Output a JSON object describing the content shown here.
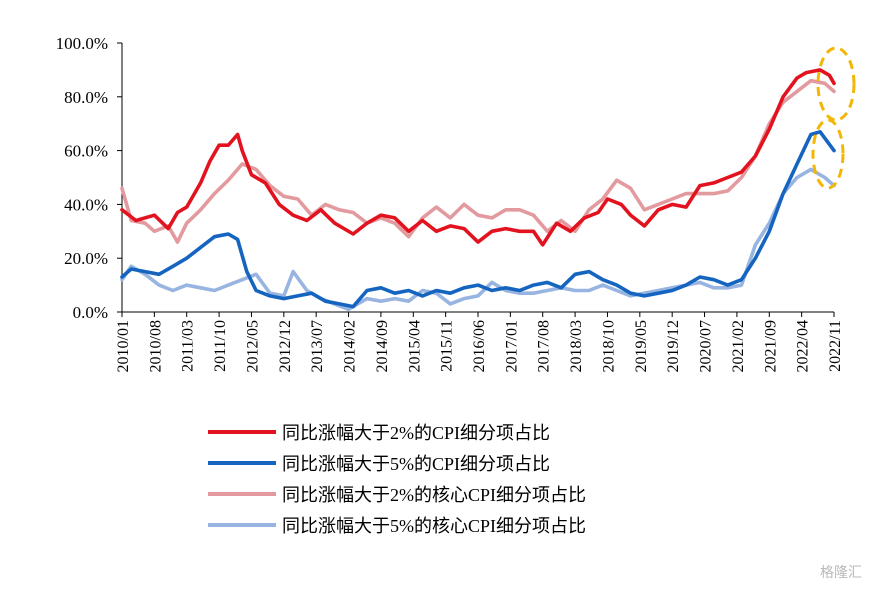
{
  "colors": {
    "series_1": "#e2131e",
    "series_2": "#1565c0",
    "series_3": "#e39a9e",
    "series_4": "#98b4e0",
    "highlight": "#f2b705",
    "axis": "#000000"
  },
  "watermark": "格隆汇",
  "chart_data": {
    "type": "line",
    "title": "",
    "xlabel": "",
    "ylabel": "",
    "ylim": [
      0,
      100
    ],
    "y_ticks": [
      "0.0%",
      "20.0%",
      "40.0%",
      "60.0%",
      "80.0%",
      "100.0%"
    ],
    "x_ticks": [
      "2010/01",
      "2010/08",
      "2011/03",
      "2011/10",
      "2012/05",
      "2012/12",
      "2013/07",
      "2014/02",
      "2014/09",
      "2015/04",
      "2015/11",
      "2016/06",
      "2017/01",
      "2017/08",
      "2018/03",
      "2018/10",
      "2019/05",
      "2019/12",
      "2020/07",
      "2021/02",
      "2021/09",
      "2022/04",
      "2022/11"
    ],
    "grid": false,
    "legend_position": "bottom",
    "x_range": [
      "2010/01",
      "2022/11"
    ],
    "series": [
      {
        "name": "同比涨幅大于2%的CPI细分项占比",
        "points": [
          [
            "2010/01",
            38
          ],
          [
            "2010/04",
            34
          ],
          [
            "2010/08",
            36
          ],
          [
            "2010/11",
            31
          ],
          [
            "2011/01",
            37
          ],
          [
            "2011/03",
            39
          ],
          [
            "2011/06",
            48
          ],
          [
            "2011/08",
            56
          ],
          [
            "2011/10",
            62
          ],
          [
            "2011/12",
            62
          ],
          [
            "2012/02",
            66
          ],
          [
            "2012/03",
            60
          ],
          [
            "2012/05",
            51
          ],
          [
            "2012/08",
            48
          ],
          [
            "2012/11",
            40
          ],
          [
            "2013/02",
            36
          ],
          [
            "2013/05",
            34
          ],
          [
            "2013/08",
            38
          ],
          [
            "2013/11",
            33
          ],
          [
            "2014/03",
            29
          ],
          [
            "2014/06",
            33
          ],
          [
            "2014/09",
            36
          ],
          [
            "2014/12",
            35
          ],
          [
            "2015/03",
            30
          ],
          [
            "2015/06",
            34
          ],
          [
            "2015/09",
            30
          ],
          [
            "2015/12",
            32
          ],
          [
            "2016/03",
            31
          ],
          [
            "2016/06",
            26
          ],
          [
            "2016/09",
            30
          ],
          [
            "2016/12",
            31
          ],
          [
            "2017/03",
            30
          ],
          [
            "2017/06",
            30
          ],
          [
            "2017/08",
            25
          ],
          [
            "2017/11",
            33
          ],
          [
            "2018/02",
            30
          ],
          [
            "2018/05",
            35
          ],
          [
            "2018/08",
            37
          ],
          [
            "2018/10",
            42
          ],
          [
            "2019/01",
            40
          ],
          [
            "2019/03",
            36
          ],
          [
            "2019/06",
            32
          ],
          [
            "2019/09",
            38
          ],
          [
            "2019/12",
            40
          ],
          [
            "2020/03",
            39
          ],
          [
            "2020/06",
            47
          ],
          [
            "2020/09",
            48
          ],
          [
            "2020/12",
            50
          ],
          [
            "2021/03",
            52
          ],
          [
            "2021/06",
            58
          ],
          [
            "2021/09",
            68
          ],
          [
            "2021/12",
            80
          ],
          [
            "2022/03",
            87
          ],
          [
            "2022/05",
            89
          ],
          [
            "2022/08",
            90
          ],
          [
            "2022/10",
            88
          ],
          [
            "2022/11",
            85
          ]
        ]
      },
      {
        "name": "同比涨幅大于5%的CPI细分项占比",
        "points": [
          [
            "2010/01",
            13
          ],
          [
            "2010/03",
            16
          ],
          [
            "2010/06",
            15
          ],
          [
            "2010/09",
            14
          ],
          [
            "2010/12",
            17
          ],
          [
            "2011/03",
            20
          ],
          [
            "2011/06",
            24
          ],
          [
            "2011/09",
            28
          ],
          [
            "2011/12",
            29
          ],
          [
            "2012/02",
            27
          ],
          [
            "2012/04",
            15
          ],
          [
            "2012/06",
            8
          ],
          [
            "2012/09",
            6
          ],
          [
            "2012/12",
            5
          ],
          [
            "2013/03",
            6
          ],
          [
            "2013/06",
            7
          ],
          [
            "2013/09",
            4
          ],
          [
            "2013/12",
            3
          ],
          [
            "2014/03",
            2
          ],
          [
            "2014/06",
            8
          ],
          [
            "2014/09",
            9
          ],
          [
            "2014/12",
            7
          ],
          [
            "2015/03",
            8
          ],
          [
            "2015/06",
            6
          ],
          [
            "2015/09",
            8
          ],
          [
            "2015/12",
            7
          ],
          [
            "2016/03",
            9
          ],
          [
            "2016/06",
            10
          ],
          [
            "2016/09",
            8
          ],
          [
            "2016/12",
            9
          ],
          [
            "2017/03",
            8
          ],
          [
            "2017/06",
            10
          ],
          [
            "2017/09",
            11
          ],
          [
            "2017/12",
            9
          ],
          [
            "2018/03",
            14
          ],
          [
            "2018/06",
            15
          ],
          [
            "2018/09",
            12
          ],
          [
            "2018/12",
            10
          ],
          [
            "2019/03",
            7
          ],
          [
            "2019/06",
            6
          ],
          [
            "2019/09",
            7
          ],
          [
            "2019/12",
            8
          ],
          [
            "2020/03",
            10
          ],
          [
            "2020/06",
            13
          ],
          [
            "2020/09",
            12
          ],
          [
            "2020/12",
            10
          ],
          [
            "2021/03",
            12
          ],
          [
            "2021/06",
            20
          ],
          [
            "2021/09",
            30
          ],
          [
            "2021/12",
            44
          ],
          [
            "2022/03",
            55
          ],
          [
            "2022/06",
            66
          ],
          [
            "2022/08",
            67
          ],
          [
            "2022/11",
            60
          ]
        ]
      },
      {
        "name": "同比涨幅大于2%的核心CPI细分项占比",
        "points": [
          [
            "2010/01",
            46
          ],
          [
            "2010/03",
            34
          ],
          [
            "2010/06",
            33
          ],
          [
            "2010/08",
            30
          ],
          [
            "2010/11",
            32
          ],
          [
            "2011/01",
            26
          ],
          [
            "2011/03",
            33
          ],
          [
            "2011/06",
            38
          ],
          [
            "2011/09",
            44
          ],
          [
            "2011/12",
            49
          ],
          [
            "2012/03",
            55
          ],
          [
            "2012/06",
            53
          ],
          [
            "2012/09",
            47
          ],
          [
            "2012/12",
            43
          ],
          [
            "2013/03",
            42
          ],
          [
            "2013/06",
            36
          ],
          [
            "2013/09",
            40
          ],
          [
            "2013/12",
            38
          ],
          [
            "2014/03",
            37
          ],
          [
            "2014/06",
            33
          ],
          [
            "2014/09",
            35
          ],
          [
            "2014/12",
            33
          ],
          [
            "2015/03",
            28
          ],
          [
            "2015/06",
            35
          ],
          [
            "2015/09",
            39
          ],
          [
            "2015/12",
            35
          ],
          [
            "2016/03",
            40
          ],
          [
            "2016/06",
            36
          ],
          [
            "2016/09",
            35
          ],
          [
            "2016/12",
            38
          ],
          [
            "2017/03",
            38
          ],
          [
            "2017/06",
            36
          ],
          [
            "2017/09",
            30
          ],
          [
            "2017/12",
            34
          ],
          [
            "2018/03",
            30
          ],
          [
            "2018/06",
            38
          ],
          [
            "2018/09",
            42
          ],
          [
            "2018/12",
            49
          ],
          [
            "2019/03",
            46
          ],
          [
            "2019/06",
            38
          ],
          [
            "2019/09",
            40
          ],
          [
            "2019/12",
            42
          ],
          [
            "2020/03",
            44
          ],
          [
            "2020/06",
            44
          ],
          [
            "2020/09",
            44
          ],
          [
            "2020/12",
            45
          ],
          [
            "2021/03",
            50
          ],
          [
            "2021/06",
            58
          ],
          [
            "2021/09",
            70
          ],
          [
            "2021/12",
            78
          ],
          [
            "2022/03",
            82
          ],
          [
            "2022/06",
            86
          ],
          [
            "2022/09",
            85
          ],
          [
            "2022/11",
            82
          ]
        ]
      },
      {
        "name": "同比涨幅大于5%的核心CPI细分项占比",
        "points": [
          [
            "2010/01",
            12
          ],
          [
            "2010/03",
            17
          ],
          [
            "2010/06",
            14
          ],
          [
            "2010/09",
            10
          ],
          [
            "2010/12",
            8
          ],
          [
            "2011/03",
            10
          ],
          [
            "2011/06",
            9
          ],
          [
            "2011/09",
            8
          ],
          [
            "2011/12",
            10
          ],
          [
            "2012/03",
            12
          ],
          [
            "2012/06",
            14
          ],
          [
            "2012/09",
            7
          ],
          [
            "2012/12",
            6
          ],
          [
            "2013/02",
            15
          ],
          [
            "2013/05",
            8
          ],
          [
            "2013/08",
            5
          ],
          [
            "2013/11",
            3
          ],
          [
            "2014/02",
            1
          ],
          [
            "2014/06",
            5
          ],
          [
            "2014/09",
            4
          ],
          [
            "2014/12",
            5
          ],
          [
            "2015/03",
            4
          ],
          [
            "2015/06",
            8
          ],
          [
            "2015/09",
            7
          ],
          [
            "2015/12",
            3
          ],
          [
            "2016/03",
            5
          ],
          [
            "2016/06",
            6
          ],
          [
            "2016/09",
            11
          ],
          [
            "2016/12",
            8
          ],
          [
            "2017/03",
            7
          ],
          [
            "2017/06",
            7
          ],
          [
            "2017/09",
            8
          ],
          [
            "2017/12",
            9
          ],
          [
            "2018/03",
            8
          ],
          [
            "2018/06",
            8
          ],
          [
            "2018/09",
            10
          ],
          [
            "2018/12",
            8
          ],
          [
            "2019/03",
            6
          ],
          [
            "2019/06",
            7
          ],
          [
            "2019/09",
            8
          ],
          [
            "2019/12",
            9
          ],
          [
            "2020/03",
            10
          ],
          [
            "2020/06",
            11
          ],
          [
            "2020/09",
            9
          ],
          [
            "2020/12",
            9
          ],
          [
            "2021/03",
            10
          ],
          [
            "2021/06",
            25
          ],
          [
            "2021/09",
            33
          ],
          [
            "2021/12",
            44
          ],
          [
            "2022/03",
            50
          ],
          [
            "2022/06",
            53
          ],
          [
            "2022/09",
            50
          ],
          [
            "2022/11",
            47
          ]
        ]
      }
    ]
  }
}
